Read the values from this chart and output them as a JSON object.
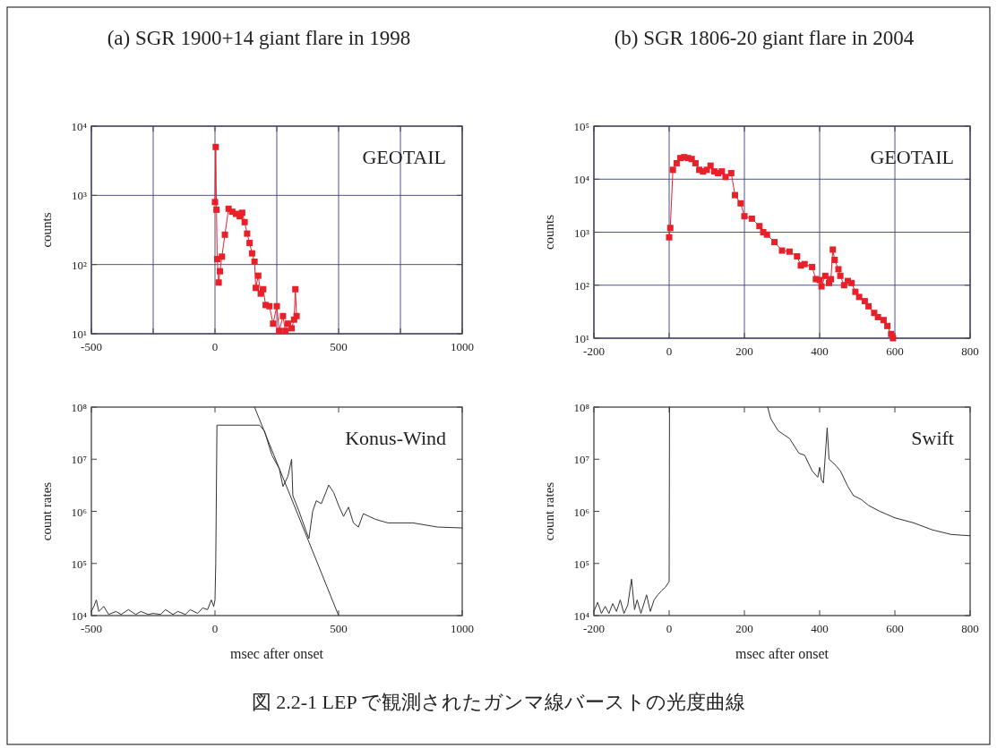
{
  "chart_data": [
    {
      "type": "line",
      "title": "(a) SGR 1900+14 giant flare in 1998",
      "ylabel": "counts",
      "log": true,
      "grid": true,
      "marker": "square",
      "xlim": [
        -500,
        1000
      ],
      "xticks": [
        -500,
        {
          "value": -250,
          "label": null
        },
        0,
        {
          "value": 250,
          "label": null
        },
        500,
        {
          "value": 750,
          "label": null
        },
        1000
      ],
      "ylim": [
        10,
        10000
      ],
      "yticks": [
        {
          "value": 10,
          "label": "10¹"
        },
        {
          "value": 100,
          "label": "10²"
        },
        {
          "value": 1000,
          "label": "10³"
        },
        {
          "value": 10000,
          "label": "10⁴"
        }
      ],
      "annotations": [
        "GEOTAIL",
        "図 2.2-1 LEP で観測されたガンマ線バーストの光度曲線"
      ],
      "series": [
        {
          "color": "#e8202a",
          "x": [
            0,
            3,
            6,
            9,
            15,
            20,
            28,
            40,
            55,
            70,
            85,
            100,
            110,
            120,
            130,
            140,
            150,
            160,
            165,
            175,
            185,
            195,
            205,
            220,
            235,
            250,
            260,
            275,
            285,
            295,
            310,
            320,
            325,
            330
          ],
          "values": [
            800,
            5000,
            620,
            120,
            55,
            80,
            130,
            270,
            640,
            580,
            540,
            500,
            560,
            410,
            280,
            205,
            145,
            110,
            46,
            69,
            38,
            44,
            26,
            25,
            14,
            25,
            11,
            18,
            11,
            14,
            12,
            16,
            44,
            18
          ]
        }
      ]
    },
    {
      "type": "line",
      "title": "(b) SGR 1806-20 giant flare in 2004",
      "ylabel": "counts",
      "log": true,
      "grid": true,
      "marker": "square",
      "xlim": [
        -200,
        800
      ],
      "xticks": [
        -200,
        0,
        200,
        400,
        600,
        800
      ],
      "ylim": [
        10,
        100000
      ],
      "yticks": [
        {
          "value": 10,
          "label": "10¹"
        },
        {
          "value": 100,
          "label": "10²"
        },
        {
          "value": 1000,
          "label": "10³"
        },
        {
          "value": 10000,
          "label": "10⁴"
        },
        {
          "value": 100000,
          "label": "10⁵"
        }
      ],
      "annotations": [
        "GEOTAIL"
      ],
      "series": [
        {
          "color": "#e8202a",
          "x": [
            0,
            3,
            10,
            20,
            30,
            40,
            50,
            60,
            70,
            80,
            90,
            100,
            110,
            120,
            130,
            140,
            150,
            165,
            175,
            190,
            200,
            220,
            240,
            250,
            260,
            280,
            300,
            320,
            340,
            350,
            360,
            380,
            390,
            400,
            405,
            415,
            425,
            430,
            435,
            440,
            450,
            455,
            465,
            475,
            485,
            495,
            505,
            520,
            530,
            545,
            555,
            570,
            580,
            590,
            595
          ],
          "values": [
            800,
            1200,
            15000,
            20000,
            25000,
            26000,
            25000,
            24000,
            20000,
            15000,
            14000,
            15000,
            18000,
            14000,
            13000,
            14000,
            11000,
            13000,
            5000,
            3500,
            2000,
            1800,
            1300,
            1000,
            900,
            650,
            450,
            430,
            350,
            235,
            250,
            220,
            130,
            125,
            95,
            150,
            110,
            130,
            470,
            300,
            200,
            150,
            100,
            120,
            110,
            75,
            60,
            50,
            40,
            30,
            25,
            22,
            17,
            12,
            10
          ]
        }
      ]
    },
    {
      "type": "line",
      "ylabel": "count rates",
      "xlabel": "msec after onset",
      "log": true,
      "xlim": [
        -500,
        1000
      ],
      "xticks": [
        -500,
        0,
        500,
        1000
      ],
      "ylim": [
        10000,
        100000000
      ],
      "yticks": [
        {
          "value": 10000,
          "label": "10⁴"
        },
        {
          "value": 100000,
          "label": "10⁵"
        },
        {
          "value": 1000000,
          "label": "10⁶"
        },
        {
          "value": 10000000,
          "label": "10⁷"
        },
        {
          "value": 100000000,
          "label": "10⁸"
        }
      ],
      "annotations": [
        "Konus-Wind"
      ],
      "series": [
        {
          "color": "#333333",
          "x": [
            -500,
            -490,
            -480,
            -470,
            -450,
            -430,
            -400,
            -380,
            -350,
            -320,
            -300,
            -270,
            -250,
            -220,
            -200,
            -170,
            -150,
            -120,
            -100,
            -70,
            -50,
            -30,
            -15,
            -5,
            0,
            3,
            8,
            180,
            200,
            230,
            260,
            275,
            295,
            310,
            315,
            340,
            370,
            380,
            395,
            410,
            430,
            450,
            460,
            480,
            500,
            520,
            540,
            560,
            580,
            600,
            650,
            700,
            800,
            900,
            1000
          ],
          "values": [
            12000,
            15000,
            20000,
            12000,
            15000,
            10500,
            12000,
            10500,
            13000,
            10500,
            12000,
            10500,
            11000,
            10500,
            13000,
            10500,
            12000,
            10500,
            13000,
            11000,
            14000,
            13000,
            20000,
            15000,
            20000,
            100000,
            45000000,
            45000000,
            35000000,
            12000000,
            6600000,
            3000000,
            4700000,
            10000000,
            2000000,
            1000000,
            400000,
            300000,
            1000000,
            1600000,
            1400000,
            2400000,
            3200000,
            2300000,
            1300000,
            800000,
            1200000,
            600000,
            500000,
            900000,
            700000,
            600000,
            600000,
            500000,
            480000
          ]
        },
        {
          "color": "#333333",
          "x": [
            160,
            500
          ],
          "values": [
            100000000,
            10000
          ]
        }
      ]
    },
    {
      "type": "line",
      "ylabel": "count rates",
      "xlabel": "msec after onset",
      "log": true,
      "xlim": [
        -200,
        800
      ],
      "xticks": [
        -200,
        0,
        200,
        400,
        600,
        800
      ],
      "ylim": [
        10000,
        100000000
      ],
      "yticks": [
        {
          "value": 10000,
          "label": "10⁴"
        },
        {
          "value": 100000,
          "label": "10⁵"
        },
        {
          "value": 1000000,
          "label": "10⁶"
        },
        {
          "value": 10000000,
          "label": "10⁷"
        },
        {
          "value": 100000000,
          "label": "10⁸"
        }
      ],
      "annotations": [
        "Swift"
      ],
      "series": [
        {
          "color": "#333333",
          "x": [
            -200,
            -190,
            -180,
            -170,
            -160,
            -150,
            -140,
            -130,
            -120,
            -110,
            -100,
            -92,
            -85,
            -75,
            -60,
            -50,
            -40,
            -30,
            -20,
            -10,
            0,
            1
          ],
          "values": [
            12000,
            18000,
            11000,
            15000,
            11000,
            17000,
            12000,
            20000,
            11000,
            16000,
            50000,
            13000,
            20000,
            11000,
            25000,
            12000,
            20000,
            25000,
            30000,
            35000,
            45000,
            100000000
          ]
        },
        {
          "color": "#333333",
          "x": [
            262,
            270,
            290,
            320,
            345,
            360,
            380,
            395,
            400,
            405,
            410,
            420,
            425,
            440,
            455,
            475,
            490,
            510,
            530,
            560,
            600,
            650,
            700,
            750,
            800
          ],
          "values": [
            100000000,
            60000000,
            35000000,
            25000000,
            13000000,
            12000000,
            6000000,
            4500000,
            7000000,
            4000000,
            3500000,
            40000000,
            10000000,
            8000000,
            6000000,
            3000000,
            2000000,
            1700000,
            1300000,
            1000000,
            750000,
            600000,
            440000,
            360000,
            340000
          ]
        }
      ]
    }
  ]
}
